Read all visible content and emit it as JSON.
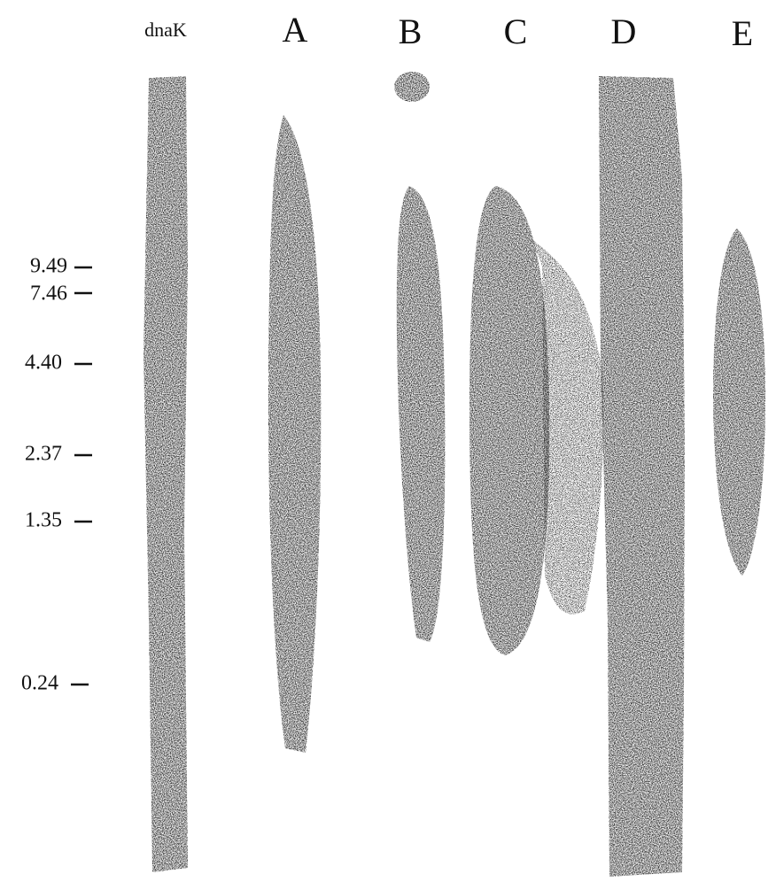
{
  "lanes": [
    "dnaK",
    "A",
    "B",
    "C",
    "D",
    "E"
  ],
  "markers": [
    "9.49",
    "7.46",
    "4.40",
    "2.37",
    "1.35",
    "0.24"
  ]
}
